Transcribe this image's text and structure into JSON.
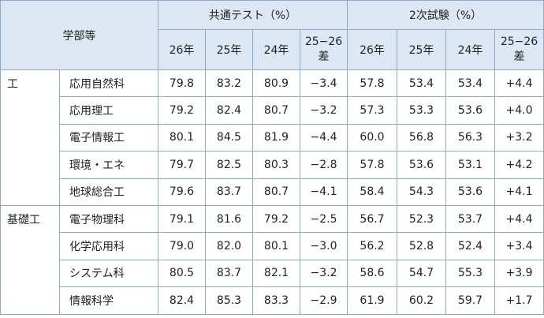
{
  "header": {
    "group_label": "学部等",
    "kyotsu": {
      "title": "共通テスト（%）",
      "columns": [
        "26年",
        "25年",
        "24年"
      ],
      "diff": [
        "25−26",
        "差"
      ]
    },
    "niji": {
      "title": "2次試験（%）",
      "columns": [
        "26年",
        "25年",
        "24年"
      ],
      "diff": [
        "25−26",
        "差"
      ]
    }
  },
  "groups": [
    {
      "name": "工",
      "rows": [
        {
          "dept": "応用自然科",
          "values": [
            "79.8",
            "83.2",
            "80.9",
            "−3.4",
            "57.8",
            "53.4",
            "53.4",
            "+4.4"
          ]
        },
        {
          "dept": "応用理工",
          "values": [
            "79.2",
            "82.4",
            "80.7",
            "−3.2",
            "57.3",
            "53.3",
            "53.6",
            "+4.0"
          ]
        },
        {
          "dept": "電子情報工",
          "values": [
            "80.1",
            "84.5",
            "81.9",
            "−4.4",
            "60.0",
            "56.8",
            "56.3",
            "+3.2"
          ]
        },
        {
          "dept": "環境・エネ",
          "values": [
            "79.7",
            "82.5",
            "80.3",
            "−2.8",
            "57.8",
            "53.6",
            "53.1",
            "+4.2"
          ]
        },
        {
          "dept": "地球総合工",
          "values": [
            "79.6",
            "83.7",
            "80.7",
            "−4.1",
            "58.4",
            "54.3",
            "53.6",
            "+4.1"
          ]
        }
      ]
    },
    {
      "name": "基礎工",
      "rows": [
        {
          "dept": "電子物理科",
          "values": [
            "79.1",
            "81.6",
            "79.2",
            "−2.5",
            "56.7",
            "52.3",
            "53.7",
            "+4.4"
          ]
        },
        {
          "dept": "化学応用科",
          "values": [
            "79.0",
            "82.0",
            "80.1",
            "−3.0",
            "56.2",
            "52.8",
            "52.4",
            "+3.4"
          ]
        },
        {
          "dept": "システム科",
          "values": [
            "80.5",
            "83.7",
            "82.1",
            "−3.2",
            "58.6",
            "54.7",
            "55.3",
            "+3.9"
          ]
        },
        {
          "dept": "情報科学",
          "values": [
            "82.4",
            "85.3",
            "83.3",
            "−2.9",
            "61.9",
            "60.2",
            "59.7",
            "+1.7"
          ]
        }
      ]
    }
  ]
}
